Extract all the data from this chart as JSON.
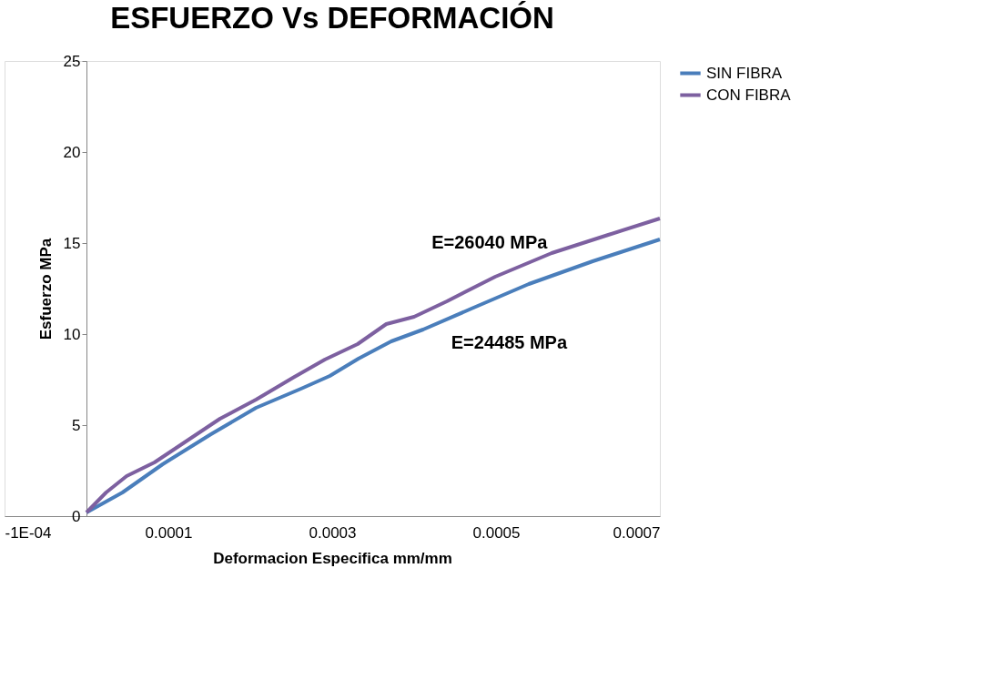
{
  "chart_data": {
    "type": "line",
    "title": "ESFUERZO Vs DEFORMACIÓN",
    "xlabel": "Deformacion Especifica mm/mm",
    "ylabel": "Esfuerzo  MPa",
    "xlim": [
      -0.0001,
      0.0007
    ],
    "xticks": [
      {
        "value": -0.0001,
        "label": "-1E-04"
      },
      0.0001,
      0.0003,
      0.0005,
      0.0007
    ],
    "ylim": [
      0,
      25
    ],
    "yticks": [
      0,
      5,
      10,
      15,
      20,
      25
    ],
    "grid": false,
    "legend": "right",
    "marker": "none",
    "line_style": "solid",
    "series": [
      {
        "name": "SIN FIBRA",
        "color": "#4a7ebb",
        "x": [
          0,
          4.4e-05,
          9.3e-05,
          0.000152,
          0.000207,
          0.000262,
          0.000297,
          0.000332,
          0.000372,
          0.000411,
          0.00047,
          0.00054,
          0.000618,
          0.0007
        ],
        "values": [
          0.2,
          1.3,
          2.85,
          4.5,
          5.95,
          7.0,
          7.7,
          8.65,
          9.6,
          10.25,
          11.4,
          12.75,
          14.0,
          15.2
        ]
      },
      {
        "name": "CON FIBRA",
        "color": "#7d60a0",
        "x": [
          0,
          2.4e-05,
          4.9e-05,
          8.3e-05,
          0.000123,
          0.000163,
          0.000207,
          0.000252,
          0.000291,
          0.000331,
          0.000366,
          0.0004,
          0.00044,
          0.000499,
          0.000568,
          0.000637,
          0.0007
        ],
        "values": [
          0.2,
          1.3,
          2.2,
          2.95,
          4.15,
          5.35,
          6.4,
          7.6,
          8.6,
          9.45,
          10.55,
          10.95,
          11.8,
          13.15,
          14.45,
          15.45,
          16.35
        ]
      }
    ],
    "annotations": [
      "E=26040  MPa",
      "E=24485  MPa"
    ]
  }
}
